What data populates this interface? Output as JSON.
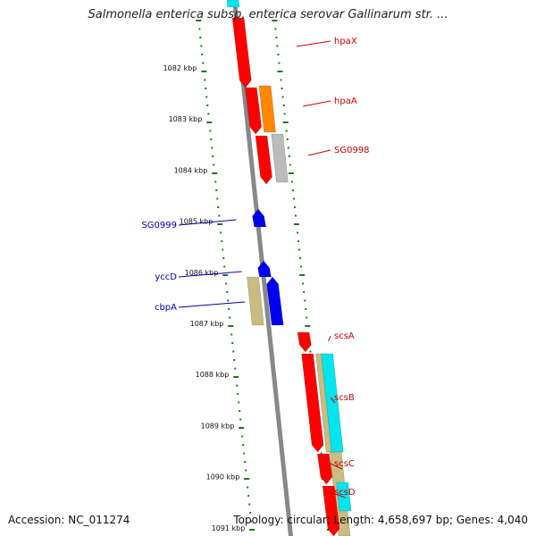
{
  "title": "Salmonella enterica subsp. enterica serovar Gallinarum str. ...",
  "accession": "Accession: NC_011274",
  "summary": "Topology: circular; Length: 4,658,697 bp; Genes: 4,040",
  "kbp_labels": [
    "1082 kbp",
    "1083 kbp",
    "1084 kbp",
    "1085 kbp",
    "1086 kbp",
    "1087 kbp",
    "1088 kbp",
    "1089 kbp",
    "1090 kbp",
    "1091 kbp"
  ],
  "genes_forward": [
    "hpaX",
    "hpaA",
    "SG0998",
    "scsA",
    "scsB",
    "scsC",
    "scsD"
  ],
  "genes_reverse": [
    "SG0999",
    "yccD",
    "cbpA"
  ],
  "colors": {
    "forward_gene": "#ff0000",
    "reverse_gene": "#0000ee",
    "orange_gene": "#ff8800",
    "grey_gene": "#bbbbbb",
    "khaki_gene": "#c8bc82",
    "cyan_gene": "#00e5ee",
    "ticks": "#1a7a1a",
    "backbone": "#888888",
    "forward_label": "#cc0000",
    "reverse_label": "#0000aa"
  }
}
